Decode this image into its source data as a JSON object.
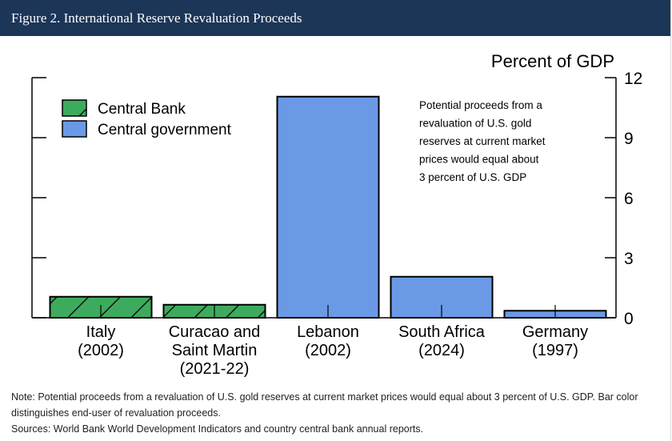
{
  "header": {
    "title": "Figure 2. International Reserve Revaluation Proceeds"
  },
  "chart_data": {
    "type": "bar",
    "y_label": "Percent of GDP",
    "categories": [
      [
        "Italy",
        "(2002)"
      ],
      [
        "Curacao and",
        "Saint Martin",
        "(2021-22)"
      ],
      [
        "Lebanon",
        "(2002)"
      ],
      [
        "South Africa",
        "(2024)"
      ],
      [
        "Germany",
        "(1997)"
      ]
    ],
    "series": [
      {
        "name": "Central Bank",
        "color": "#3dab5e",
        "hatch": true,
        "values": [
          1.05,
          0.65,
          null,
          null,
          null
        ]
      },
      {
        "name": "Central government",
        "color": "#6a9ae6",
        "hatch": false,
        "values": [
          null,
          null,
          11.05,
          2.05,
          0.35
        ]
      }
    ],
    "ylim": [
      0,
      12
    ],
    "yticks": [
      0,
      3,
      6,
      9,
      12
    ],
    "annotation": [
      "Potential proceeds from a",
      "revaluation of U.S. gold",
      "reserves at current market",
      "prices would equal about",
      "3 percent of U.S. GDP"
    ]
  },
  "notes": {
    "note": "Note: Potential proceeds from a revaluation of U.S. gold reserves at current market prices would equal about 3 percent of U.S. GDP. Bar color distinguishes end-user of revaluation proceeds.",
    "sources": "Sources: World Bank World Development Indicators and country central bank annual reports."
  }
}
